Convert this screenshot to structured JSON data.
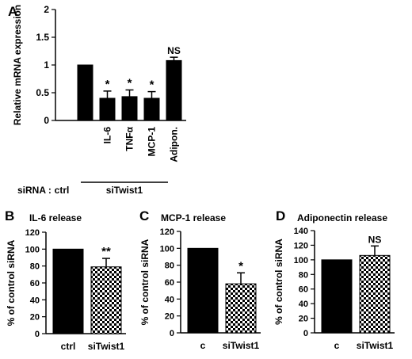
{
  "colors": {
    "bar_fill": "#000000",
    "pattern_dark": "#000000",
    "pattern_light": "#ffffff"
  },
  "panels": {
    "A": {
      "letter": "A",
      "sirna_label": "siRNA :",
      "ctrl_label": "ctrl",
      "group_label": "siTwist1"
    },
    "B": {
      "letter": "B",
      "title": "IL-6 release"
    },
    "C": {
      "letter": "C",
      "title": "MCP-1 release"
    },
    "D": {
      "letter": "D",
      "title": "Adiponectin release"
    }
  },
  "chart_data": [
    {
      "id": "A",
      "type": "bar",
      "ylabel": "Relative mRNA expression",
      "ylim": [
        0,
        2
      ],
      "yticks": [
        "0",
        "0.5",
        "1",
        "1.5",
        "2"
      ],
      "categories": [
        "",
        "IL-6",
        "TNFα",
        "MCP-1",
        "Adipon."
      ],
      "values": [
        1.0,
        0.4,
        0.43,
        0.4,
        1.08
      ],
      "errors": [
        0,
        0.13,
        0.12,
        0.12,
        0.06
      ],
      "annotations": [
        "",
        "*",
        "*",
        "*",
        "NS"
      ],
      "patterns": [
        "solid",
        "solid",
        "solid",
        "solid",
        "solid"
      ],
      "grid": false
    },
    {
      "id": "B",
      "type": "bar",
      "title": "IL-6 release",
      "ylabel": "% of control siRNA",
      "ylim": [
        0,
        120
      ],
      "yticks": [
        "0",
        "20",
        "40",
        "60",
        "80",
        "100",
        "120"
      ],
      "categories": [
        "ctrl",
        "siTwist1"
      ],
      "values": [
        100,
        79
      ],
      "errors": [
        0,
        10
      ],
      "annotations": [
        "",
        "**"
      ],
      "patterns": [
        "solid",
        "checker"
      ],
      "grid": false
    },
    {
      "id": "C",
      "type": "bar",
      "title": "MCP-1 release",
      "ylabel": "% of control siRNA",
      "ylim": [
        0,
        120
      ],
      "yticks": [
        "0",
        "20",
        "40",
        "60",
        "80",
        "100",
        "120"
      ],
      "categories": [
        "c",
        "siTwist1"
      ],
      "values": [
        100,
        58
      ],
      "errors": [
        0,
        13
      ],
      "annotations": [
        "",
        "*"
      ],
      "patterns": [
        "solid",
        "checker"
      ],
      "grid": false
    },
    {
      "id": "D",
      "type": "bar",
      "title": "Adiponectin release",
      "ylabel": "% of control siRNA",
      "ylim": [
        0,
        140
      ],
      "yticks": [
        "0",
        "20",
        "40",
        "60",
        "80",
        "100",
        "120",
        "140"
      ],
      "categories": [
        "c",
        "siTwist1"
      ],
      "values": [
        100,
        106
      ],
      "errors": [
        0,
        13
      ],
      "annotations": [
        "",
        "NS"
      ],
      "patterns": [
        "solid",
        "checker"
      ],
      "grid": false
    }
  ]
}
